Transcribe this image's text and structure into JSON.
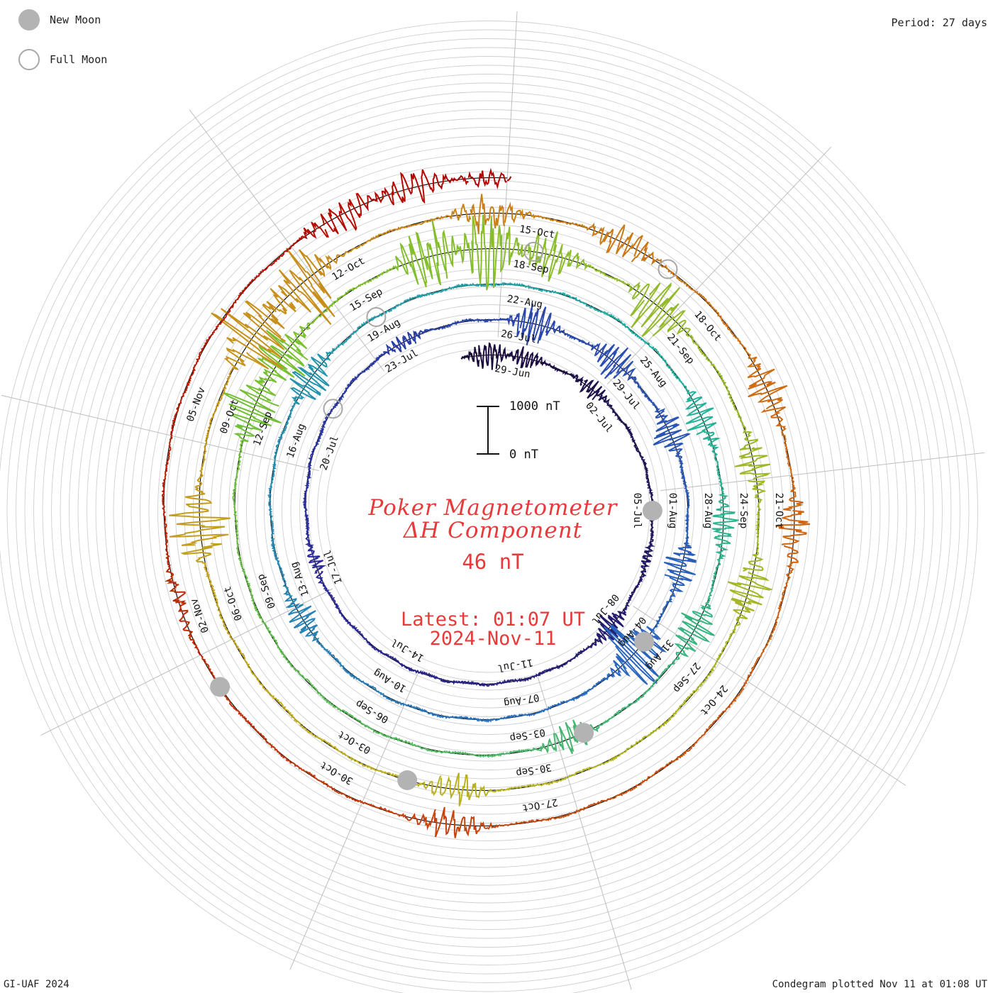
{
  "header": {
    "period_label": "Period: 27 days"
  },
  "legend": {
    "new_moon_label": "New Moon",
    "full_moon_label": "Full Moon",
    "new_moon_color": "#b3b3b3",
    "full_moon_color": "#a8a8a8"
  },
  "center": {
    "title_line1": "Poker Magnetometer",
    "title_line2": "ΔH Component",
    "value_label": "46 nT",
    "latest_label": "Latest: 01:07 UT",
    "latest_date": "2024-Nov-11",
    "text_color": "#e83a3a"
  },
  "scale_bar": {
    "top_label": "1000 nT",
    "bottom_label": "0 nT"
  },
  "footer": {
    "credit": "GI-UAF 2024",
    "plotted_label": "Condegram plotted Nov 11 at 01:08 UT"
  },
  "chart_data": {
    "type": "line",
    "subtype": "condegram spiral",
    "period_days": 27,
    "start_date": "2024-06-28",
    "end_date": "2024-11-11",
    "start_angle_deg": -10,
    "clockwise": true,
    "units": "nT",
    "grid": true,
    "date_labels": [
      {
        "date": "2024-06-29",
        "label": "29-Jun"
      },
      {
        "date": "2024-07-02",
        "label": "02-Jul"
      },
      {
        "date": "2024-07-05",
        "label": "05-Jul"
      },
      {
        "date": "2024-07-08",
        "label": "08-Jul"
      },
      {
        "date": "2024-07-11",
        "label": "11-Jul"
      },
      {
        "date": "2024-07-14",
        "label": "14-Jul"
      },
      {
        "date": "2024-07-17",
        "label": "17-Jul"
      },
      {
        "date": "2024-07-20",
        "label": "20-Jul"
      },
      {
        "date": "2024-07-23",
        "label": "23-Jul"
      },
      {
        "date": "2024-07-26",
        "label": "26-Jul"
      },
      {
        "date": "2024-07-29",
        "label": "29-Jul"
      },
      {
        "date": "2024-08-01",
        "label": "01-Aug"
      },
      {
        "date": "2024-08-04",
        "label": "04-Aug"
      },
      {
        "date": "2024-08-07",
        "label": "07-Aug"
      },
      {
        "date": "2024-08-10",
        "label": "10-Aug"
      },
      {
        "date": "2024-08-13",
        "label": "13-Aug"
      },
      {
        "date": "2024-08-16",
        "label": "16-Aug"
      },
      {
        "date": "2024-08-19",
        "label": "19-Aug"
      },
      {
        "date": "2024-08-22",
        "label": "22-Aug"
      },
      {
        "date": "2024-08-25",
        "label": "25-Aug"
      },
      {
        "date": "2024-08-28",
        "label": "28-Aug"
      },
      {
        "date": "2024-08-31",
        "label": "31-Aug"
      },
      {
        "date": "2024-09-03",
        "label": "03-Sep"
      },
      {
        "date": "2024-09-06",
        "label": "06-Sep"
      },
      {
        "date": "2024-09-09",
        "label": "09-Sep"
      },
      {
        "date": "2024-09-12",
        "label": "12-Sep"
      },
      {
        "date": "2024-09-15",
        "label": "15-Sep"
      },
      {
        "date": "2024-09-18",
        "label": "18-Sep"
      },
      {
        "date": "2024-09-21",
        "label": "21-Sep"
      },
      {
        "date": "2024-09-24",
        "label": "24-Sep"
      },
      {
        "date": "2024-09-27",
        "label": "27-Sep"
      },
      {
        "date": "2024-09-30",
        "label": "30-Sep"
      },
      {
        "date": "2024-10-03",
        "label": "03-Oct"
      },
      {
        "date": "2024-10-06",
        "label": "06-Oct"
      },
      {
        "date": "2024-10-09",
        "label": "09-Oct"
      },
      {
        "date": "2024-10-12",
        "label": "12-Oct"
      },
      {
        "date": "2024-10-15",
        "label": "15-Oct"
      },
      {
        "date": "2024-10-18",
        "label": "18-Oct"
      },
      {
        "date": "2024-10-21",
        "label": "21-Oct"
      },
      {
        "date": "2024-10-24",
        "label": "24-Oct"
      },
      {
        "date": "2024-10-27",
        "label": "27-Oct"
      },
      {
        "date": "2024-10-30",
        "label": "30-Oct"
      },
      {
        "date": "2024-11-02",
        "label": "02-Nov"
      },
      {
        "date": "2024-11-05",
        "label": "05-Nov"
      }
    ],
    "moon_phases": [
      {
        "date": "2024-07-05",
        "phase": "new"
      },
      {
        "date": "2024-07-21",
        "phase": "full"
      },
      {
        "date": "2024-08-04",
        "phase": "new"
      },
      {
        "date": "2024-08-19",
        "phase": "full"
      },
      {
        "date": "2024-09-02",
        "phase": "new"
      },
      {
        "date": "2024-09-18",
        "phase": "full"
      },
      {
        "date": "2024-10-02",
        "phase": "new"
      },
      {
        "date": "2024-10-17",
        "phase": "full"
      },
      {
        "date": "2024-11-01",
        "phase": "new"
      }
    ],
    "disturbances": [
      {
        "date": "2024-06-28",
        "amplitude": 300
      },
      {
        "date": "2024-06-29",
        "amplitude": 200
      },
      {
        "date": "2024-07-01",
        "amplitude": 200
      },
      {
        "date": "2024-07-06",
        "amplitude": 80
      },
      {
        "date": "2024-07-08",
        "amplitude": 250
      },
      {
        "date": "2024-07-17",
        "amplitude": 120
      },
      {
        "date": "2024-07-23",
        "amplitude": 150
      },
      {
        "date": "2024-07-26",
        "amplitude": 450
      },
      {
        "date": "2024-07-28",
        "amplitude": 350
      },
      {
        "date": "2024-07-30",
        "amplitude": 350
      },
      {
        "date": "2024-08-02",
        "amplitude": 350
      },
      {
        "date": "2024-08-04",
        "amplitude": 900
      },
      {
        "date": "2024-08-12",
        "amplitude": 250
      },
      {
        "date": "2024-08-17",
        "amplitude": 400
      },
      {
        "date": "2024-08-26",
        "amplitude": 300
      },
      {
        "date": "2024-08-28",
        "amplitude": 250
      },
      {
        "date": "2024-08-30",
        "amplitude": 400
      },
      {
        "date": "2024-09-02",
        "amplitude": 300
      },
      {
        "date": "2024-09-12",
        "amplitude": 550
      },
      {
        "date": "2024-09-13",
        "amplitude": 550
      },
      {
        "date": "2024-09-16",
        "amplitude": 700
      },
      {
        "date": "2024-09-17",
        "amplitude": 700
      },
      {
        "date": "2024-09-18",
        "amplitude": 450
      },
      {
        "date": "2024-09-20",
        "amplitude": 600
      },
      {
        "date": "2024-09-23",
        "amplitude": 300
      },
      {
        "date": "2024-09-25",
        "amplitude": 400
      },
      {
        "date": "2024-10-01",
        "amplitude": 300
      },
      {
        "date": "2024-10-07",
        "amplitude": 650
      },
      {
        "date": "2024-10-10",
        "amplitude": 800
      },
      {
        "date": "2024-10-11",
        "amplitude": 800
      },
      {
        "date": "2024-10-14",
        "amplitude": 350
      },
      {
        "date": "2024-10-16",
        "amplitude": 350
      },
      {
        "date": "2024-10-19",
        "amplitude": 350
      },
      {
        "date": "2024-10-21",
        "amplitude": 300
      },
      {
        "date": "2024-10-28",
        "amplitude": 300
      },
      {
        "date": "2024-11-02",
        "amplitude": 150
      },
      {
        "date": "2024-11-08",
        "amplitude": 350
      },
      {
        "date": "2024-11-09",
        "amplitude": 300
      },
      {
        "date": "2024-11-10",
        "amplitude": 150
      }
    ],
    "latest_value": 46,
    "color_gradient": [
      "#1a0a3a",
      "#2a2a9a",
      "#2a6ac0",
      "#20b0a0",
      "#7ac030",
      "#c0b020",
      "#d06010",
      "#b00000"
    ]
  }
}
